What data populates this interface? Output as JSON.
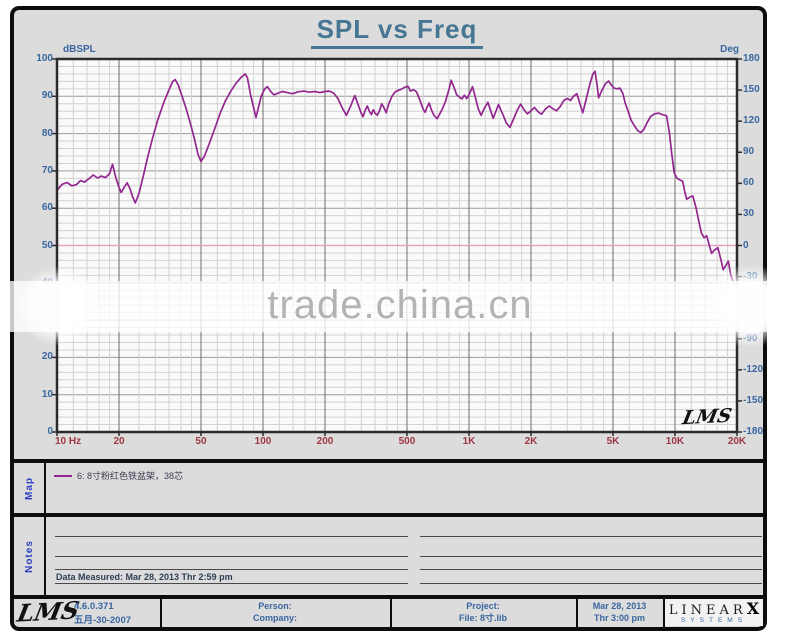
{
  "title": "SPL vs Freq",
  "chart": {
    "y_left": {
      "label": "dBSPL",
      "ticks": [
        100,
        90,
        80,
        70,
        60,
        50,
        40,
        30,
        20,
        10,
        0
      ]
    },
    "y_right": {
      "label": "Deg",
      "ticks": [
        180,
        150,
        120,
        90,
        60,
        30,
        0,
        -30,
        -60,
        -90,
        -120,
        -150,
        -180
      ]
    },
    "inplot_logo": "LMS"
  },
  "chart_data": {
    "type": "line",
    "title": "SPL vs Freq",
    "x_axis": {
      "scale": "log",
      "min": 10,
      "max": 20000,
      "ticks": [
        {
          "f": 10,
          "label": "10 Hz"
        },
        {
          "f": 20,
          "label": "20"
        },
        {
          "f": 50,
          "label": "50"
        },
        {
          "f": 100,
          "label": "100"
        },
        {
          "f": 200,
          "label": "200"
        },
        {
          "f": 500,
          "label": "500"
        },
        {
          "f": 1000,
          "label": "1K"
        },
        {
          "f": 2000,
          "label": "2K"
        },
        {
          "f": 5000,
          "label": "5K"
        },
        {
          "f": 10000,
          "label": "10K"
        },
        {
          "f": 20000,
          "label": "20K"
        }
      ]
    },
    "y_left": {
      "label": "dBSPL",
      "min": 0,
      "max": 100,
      "major_step": 10,
      "minor_step": 2
    },
    "y_right": {
      "label": "Deg",
      "min": -180,
      "max": 180,
      "major_step": 30
    },
    "reference_line_db": 50,
    "grid": {
      "minor_color": "#d2d2d2",
      "major_color": "#9c9c9c",
      "decade_color": "#6e6e6e",
      "ref_color": "#e0a3c0"
    },
    "series": [
      {
        "name": "6: 8寸粉红色铁盆架，38芯",
        "color": "#93278f",
        "points": [
          [
            10,
            64.8
          ],
          [
            10.6,
            66.4
          ],
          [
            11.2,
            66.9
          ],
          [
            11.8,
            66.0
          ],
          [
            12.4,
            66.3
          ],
          [
            13,
            67.4
          ],
          [
            13.6,
            67.0
          ],
          [
            14.2,
            67.8
          ],
          [
            15,
            68.9
          ],
          [
            15.7,
            68.1
          ],
          [
            16.4,
            68.6
          ],
          [
            17.2,
            68.2
          ],
          [
            18,
            69.3
          ],
          [
            18.6,
            71.8
          ],
          [
            19.3,
            68.2
          ],
          [
            20,
            65.6
          ],
          [
            20.5,
            64.2
          ],
          [
            21.2,
            65.6
          ],
          [
            21.9,
            66.8
          ],
          [
            22.6,
            65.3
          ],
          [
            23.3,
            63.0
          ],
          [
            24,
            61.4
          ],
          [
            25,
            64.0
          ],
          [
            26.2,
            68.5
          ],
          [
            27.5,
            73.5
          ],
          [
            29,
            78.5
          ],
          [
            30.8,
            83.5
          ],
          [
            32.8,
            88.0
          ],
          [
            34.8,
            91.5
          ],
          [
            36.5,
            94.0
          ],
          [
            37.5,
            94.5
          ],
          [
            38.8,
            93.0
          ],
          [
            40.5,
            90.0
          ],
          [
            42.5,
            86.5
          ],
          [
            44.5,
            82.5
          ],
          [
            46.5,
            78.5
          ],
          [
            48.3,
            74.5
          ],
          [
            50,
            72.5
          ],
          [
            52,
            74.0
          ],
          [
            55,
            77.5
          ],
          [
            58.5,
            81.5
          ],
          [
            62,
            85.5
          ],
          [
            66,
            89.0
          ],
          [
            70,
            91.5
          ],
          [
            74,
            93.5
          ],
          [
            78,
            95.0
          ],
          [
            82,
            96.0
          ],
          [
            84,
            95.0
          ],
          [
            87,
            90.5
          ],
          [
            90,
            87.0
          ],
          [
            92.5,
            84.3
          ],
          [
            95,
            87.0
          ],
          [
            98,
            90.0
          ],
          [
            102,
            92.0
          ],
          [
            105,
            92.6
          ],
          [
            109,
            91.3
          ],
          [
            113,
            90.4
          ],
          [
            118,
            90.8
          ],
          [
            124,
            91.3
          ],
          [
            131,
            91.0
          ],
          [
            139,
            90.7
          ],
          [
            148,
            91.2
          ],
          [
            158,
            91.4
          ],
          [
            168,
            91.1
          ],
          [
            178,
            91.3
          ],
          [
            189,
            91.0
          ],
          [
            200,
            91.3
          ],
          [
            210,
            91.4
          ],
          [
            220,
            90.9
          ],
          [
            231,
            89.4
          ],
          [
            243,
            86.8
          ],
          [
            254,
            84.9
          ],
          [
            266,
            87.3
          ],
          [
            279,
            90.2
          ],
          [
            290,
            87.7
          ],
          [
            299,
            85.6
          ],
          [
            306,
            84.5
          ],
          [
            313,
            86.2
          ],
          [
            321,
            87.4
          ],
          [
            329,
            85.9
          ],
          [
            336,
            85.1
          ],
          [
            343,
            86.4
          ],
          [
            351,
            85.4
          ],
          [
            359,
            84.9
          ],
          [
            368,
            86.2
          ],
          [
            377,
            88.0
          ],
          [
            387,
            86.9
          ],
          [
            396,
            85.6
          ],
          [
            408,
            88.0
          ],
          [
            423,
            90.0
          ],
          [
            439,
            91.2
          ],
          [
            455,
            91.6
          ],
          [
            470,
            91.9
          ],
          [
            487,
            92.4
          ],
          [
            505,
            92.7
          ],
          [
            520,
            91.4
          ],
          [
            537,
            91.8
          ],
          [
            556,
            91.2
          ],
          [
            578,
            88.9
          ],
          [
            600,
            86.5
          ],
          [
            612,
            85.7
          ],
          [
            625,
            87.0
          ],
          [
            641,
            88.2
          ],
          [
            658,
            86.3
          ],
          [
            678,
            84.8
          ],
          [
            700,
            84.0
          ],
          [
            720,
            85.2
          ],
          [
            745,
            86.8
          ],
          [
            772,
            88.9
          ],
          [
            796,
            91.5
          ],
          [
            820,
            94.3
          ],
          [
            846,
            92.4
          ],
          [
            872,
            90.4
          ],
          [
            900,
            89.7
          ],
          [
            925,
            89.3
          ],
          [
            950,
            90.3
          ],
          [
            975,
            89.4
          ],
          [
            1005,
            90.6
          ],
          [
            1040,
            92.6
          ],
          [
            1075,
            89.6
          ],
          [
            1110,
            86.6
          ],
          [
            1145,
            84.9
          ],
          [
            1185,
            86.7
          ],
          [
            1235,
            88.4
          ],
          [
            1275,
            86.1
          ],
          [
            1310,
            84.1
          ],
          [
            1350,
            85.9
          ],
          [
            1390,
            87.8
          ],
          [
            1425,
            86.4
          ],
          [
            1465,
            84.9
          ],
          [
            1515,
            82.9
          ],
          [
            1580,
            81.7
          ],
          [
            1645,
            83.9
          ],
          [
            1715,
            86.3
          ],
          [
            1780,
            87.9
          ],
          [
            1850,
            86.4
          ],
          [
            1920,
            85.3
          ],
          [
            2000,
            86.1
          ],
          [
            2080,
            87.0
          ],
          [
            2160,
            85.9
          ],
          [
            2250,
            85.2
          ],
          [
            2350,
            86.6
          ],
          [
            2450,
            87.4
          ],
          [
            2550,
            86.7
          ],
          [
            2660,
            86.1
          ],
          [
            2770,
            87.2
          ],
          [
            2890,
            88.9
          ],
          [
            3000,
            89.4
          ],
          [
            3110,
            88.9
          ],
          [
            3230,
            90.1
          ],
          [
            3340,
            90.7
          ],
          [
            3450,
            88.1
          ],
          [
            3570,
            85.6
          ],
          [
            3700,
            89.0
          ],
          [
            3850,
            93.0
          ],
          [
            3990,
            95.9
          ],
          [
            4090,
            96.7
          ],
          [
            4180,
            93.2
          ],
          [
            4260,
            89.6
          ],
          [
            4420,
            91.6
          ],
          [
            4600,
            93.4
          ],
          [
            4760,
            94.1
          ],
          [
            4910,
            93.0
          ],
          [
            5060,
            92.2
          ],
          [
            5220,
            92.0
          ],
          [
            5400,
            92.2
          ],
          [
            5580,
            90.8
          ],
          [
            5740,
            88.1
          ],
          [
            5920,
            86.0
          ],
          [
            6120,
            83.6
          ],
          [
            6400,
            81.8
          ],
          [
            6620,
            80.7
          ],
          [
            6840,
            80.3
          ],
          [
            7060,
            81.1
          ],
          [
            7330,
            83.0
          ],
          [
            7620,
            84.6
          ],
          [
            7960,
            85.3
          ],
          [
            8350,
            85.5
          ],
          [
            8750,
            85.0
          ],
          [
            9100,
            84.8
          ],
          [
            9400,
            80.0
          ],
          [
            9650,
            74.5
          ],
          [
            9900,
            69.6
          ],
          [
            10200,
            68.1
          ],
          [
            10550,
            67.6
          ],
          [
            10900,
            67.2
          ],
          [
            11150,
            64.5
          ],
          [
            11400,
            62.4
          ],
          [
            11750,
            62.9
          ],
          [
            12200,
            63.3
          ],
          [
            12650,
            60.2
          ],
          [
            13050,
            56.5
          ],
          [
            13450,
            53.3
          ],
          [
            13850,
            52.1
          ],
          [
            14250,
            52.6
          ],
          [
            14650,
            50.1
          ],
          [
            15050,
            47.9
          ],
          [
            15550,
            48.8
          ],
          [
            16150,
            49.4
          ],
          [
            16700,
            46.2
          ],
          [
            17150,
            43.5
          ],
          [
            17650,
            44.6
          ],
          [
            18150,
            45.8
          ],
          [
            18650,
            42.2
          ],
          [
            19150,
            40.3
          ],
          [
            19600,
            38.9
          ],
          [
            20000,
            40.2
          ]
        ]
      }
    ]
  },
  "map": {
    "label": "Map",
    "legend": [
      {
        "color": "#93278f",
        "label": "6: 8寸粉红色铁盆架，38芯"
      }
    ]
  },
  "notes": {
    "label": "Notes",
    "measured": "Data Measured: Mar 28, 2013  Thr  2:59 pm"
  },
  "footer": {
    "logo": "LMS",
    "version": "4.6.0.371",
    "version_date": "五月-30-2007",
    "person_label": "Person:",
    "company_label": "Company:",
    "project_label": "Project:",
    "file_label": "File: 8寸.lib",
    "date": "Mar 28, 2013",
    "time": "Thr  3:00 pm",
    "brand_linear": "LINEAR",
    "brand_x": "X",
    "brand_systems": "SYSTEMS"
  },
  "watermark": {
    "text": "trade.china.cn"
  }
}
